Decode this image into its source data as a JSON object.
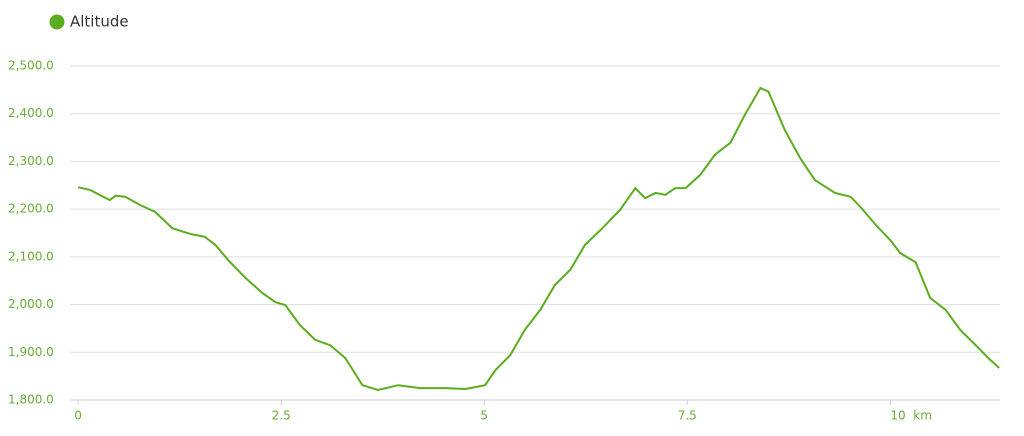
{
  "chart_data": {
    "type": "line",
    "x": [
      0,
      0.15,
      0.39,
      0.46,
      0.58,
      0.76,
      0.95,
      1.16,
      1.38,
      1.56,
      1.69,
      1.87,
      2.06,
      2.27,
      2.43,
      2.55,
      2.73,
      2.92,
      3.1,
      3.29,
      3.5,
      3.69,
      3.94,
      4.21,
      4.52,
      4.77,
      5.01,
      5.14,
      5.32,
      5.5,
      5.69,
      5.87,
      6.06,
      6.24,
      6.43,
      6.67,
      6.86,
      6.98,
      7.11,
      7.23,
      7.35,
      7.48,
      7.66,
      7.84,
      8.03,
      8.21,
      8.4,
      8.5,
      8.7,
      8.89,
      9.07,
      9.32,
      9.51,
      9.63,
      9.82,
      10.0,
      10.12,
      10.31,
      10.49,
      10.68,
      10.86,
      11.05,
      11.23,
      11.34
    ],
    "series": [
      {
        "name": "Altitude",
        "color": "#5aad1e",
        "values": [
          2246,
          2240,
          2219,
          2228,
          2226,
          2209,
          2194,
          2160,
          2148,
          2142,
          2125,
          2089,
          2056,
          2024,
          2005,
          1999,
          1957,
          1926,
          1915,
          1888,
          1831,
          1821,
          1831,
          1825,
          1825,
          1823,
          1831,
          1863,
          1894,
          1947,
          1989,
          2041,
          2073,
          2125,
          2156,
          2198,
          2244,
          2223,
          2234,
          2230,
          2244,
          2244,
          2272,
          2314,
          2339,
          2398,
          2454,
          2446,
          2366,
          2307,
          2261,
          2234,
          2226,
          2205,
          2167,
          2135,
          2108,
          2089,
          2014,
          1989,
          1947,
          1915,
          1884,
          1867
        ]
      }
    ],
    "xlim": [
      -0.1,
      11.35
    ],
    "xticks": [
      0,
      2.5,
      5,
      7.5,
      {
        "value": 10,
        "label": "10  km"
      }
    ],
    "ylim": [
      1800,
      2500
    ],
    "yticks": [
      {
        "value": 1800,
        "label": "1,800.0"
      },
      {
        "value": 1900,
        "label": "1,900.0"
      },
      {
        "value": 2000,
        "label": "2,000.0"
      },
      {
        "value": 2100,
        "label": "2,100.0"
      },
      {
        "value": 2200,
        "label": "2,200.0"
      },
      {
        "value": 2300,
        "label": "2,300.0"
      },
      {
        "value": 2400,
        "label": "2,400.0"
      },
      {
        "value": 2500,
        "label": "2,500.0"
      }
    ],
    "grid": true
  }
}
